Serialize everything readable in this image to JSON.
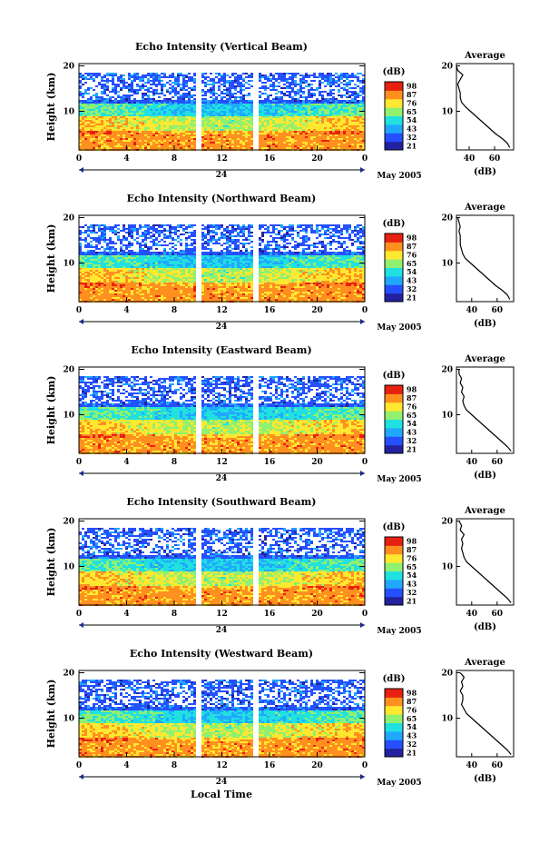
{
  "figure": {
    "x_axis_title": "Local Time",
    "date_label": "May 2005",
    "day_label": "24",
    "colorbar_unit": "(dB)",
    "profile_title": "Average",
    "profile_xlabel": "(dB)"
  },
  "chart_data": [
    {
      "type": "heatmap",
      "title": "Echo Intensity (Vertical Beam)",
      "ylabel": "Height (km)",
      "xlabel": "Local Time",
      "x_ticks": [
        "0",
        "4",
        "8",
        "12",
        "16",
        "20",
        "0"
      ],
      "y_ticks": [
        "10",
        "20"
      ],
      "xlim": [
        0,
        24
      ],
      "ylim": [
        1.5,
        20.5
      ],
      "data_gaps_hours": [
        [
          9.8,
          10.2
        ],
        [
          14.6,
          15.0
        ]
      ],
      "colorbar": {
        "unit": "(dB)",
        "ticks": [
          "21",
          "32",
          "43",
          "54",
          "65",
          "76",
          "87",
          "98"
        ],
        "colors": [
          "#2222a0",
          "#2550ff",
          "#20a8ff",
          "#20e0e0",
          "#90f070",
          "#ffe830",
          "#ff9020",
          "#e82010"
        ]
      },
      "average_profile": {
        "title": "Average",
        "xlabel": "(dB)",
        "x_ticks": [
          "40",
          "60"
        ],
        "y_ticks": [
          "10",
          "20"
        ],
        "xlim": [
          30,
          75
        ],
        "ylim": [
          1.5,
          20.5
        ],
        "points": [
          [
            72,
            2
          ],
          [
            70,
            3
          ],
          [
            66,
            4
          ],
          [
            61,
            5
          ],
          [
            57,
            6
          ],
          [
            53,
            7
          ],
          [
            49,
            8
          ],
          [
            45,
            9
          ],
          [
            41,
            10
          ],
          [
            37,
            11
          ],
          [
            34,
            12
          ],
          [
            33,
            13
          ],
          [
            33,
            14
          ],
          [
            32,
            15
          ],
          [
            31,
            16
          ],
          [
            33,
            17
          ],
          [
            35,
            18
          ],
          [
            31,
            19
          ],
          [
            30,
            20
          ]
        ]
      }
    },
    {
      "type": "heatmap",
      "title": "Echo Intensity (Northward Beam)",
      "ylabel": "Height (km)",
      "xlabel": "Local Time",
      "x_ticks": [
        "0",
        "4",
        "8",
        "12",
        "16",
        "20",
        "0"
      ],
      "y_ticks": [
        "10",
        "20"
      ],
      "xlim": [
        0,
        24
      ],
      "ylim": [
        1.5,
        20.5
      ],
      "data_gaps_hours": [
        [
          9.8,
          10.2
        ],
        [
          14.6,
          15.0
        ]
      ],
      "colorbar": {
        "unit": "(dB)",
        "ticks": [
          "21",
          "32",
          "43",
          "54",
          "65",
          "76",
          "87",
          "98"
        ],
        "colors": [
          "#2222a0",
          "#2550ff",
          "#20a8ff",
          "#20e0e0",
          "#90f070",
          "#ffe830",
          "#ff9020",
          "#e82010"
        ]
      },
      "average_profile": {
        "title": "Average",
        "xlabel": "(dB)",
        "x_ticks": [
          "40",
          "60"
        ],
        "y_ticks": [
          "10",
          "20"
        ],
        "xlim": [
          28,
          73
        ],
        "ylim": [
          1.5,
          20.5
        ],
        "points": [
          [
            70,
            2
          ],
          [
            68,
            3
          ],
          [
            64,
            4
          ],
          [
            59,
            5
          ],
          [
            55,
            6
          ],
          [
            51,
            7
          ],
          [
            47,
            8
          ],
          [
            43,
            9
          ],
          [
            39,
            10
          ],
          [
            35,
            11
          ],
          [
            33,
            12
          ],
          [
            32,
            13
          ],
          [
            31,
            14
          ],
          [
            31,
            15
          ],
          [
            31,
            16
          ],
          [
            30,
            17
          ],
          [
            31,
            18
          ],
          [
            30,
            19
          ],
          [
            29,
            20
          ]
        ]
      }
    },
    {
      "type": "heatmap",
      "title": "Echo Intensity (Eastward Beam)",
      "ylabel": "Height (km)",
      "xlabel": "Local Time",
      "x_ticks": [
        "0",
        "4",
        "8",
        "12",
        "16",
        "20",
        "0"
      ],
      "y_ticks": [
        "10",
        "20"
      ],
      "xlim": [
        0,
        24
      ],
      "ylim": [
        1.5,
        20.5
      ],
      "data_gaps_hours": [
        [
          9.8,
          10.2
        ],
        [
          14.6,
          15.0
        ]
      ],
      "colorbar": {
        "unit": "(dB)",
        "ticks": [
          "21",
          "32",
          "43",
          "54",
          "65",
          "76",
          "87",
          "98"
        ],
        "colors": [
          "#2222a0",
          "#2550ff",
          "#20a8ff",
          "#20e0e0",
          "#90f070",
          "#ffe830",
          "#ff9020",
          "#e82010"
        ]
      },
      "average_profile": {
        "title": "Average",
        "xlabel": "(dB)",
        "x_ticks": [
          "40",
          "60"
        ],
        "y_ticks": [
          "10",
          "20"
        ],
        "xlim": [
          28,
          73
        ],
        "ylim": [
          1.5,
          20.5
        ],
        "points": [
          [
            71,
            2
          ],
          [
            68,
            3
          ],
          [
            64,
            4
          ],
          [
            60,
            5
          ],
          [
            56,
            6
          ],
          [
            52,
            7
          ],
          [
            48,
            8
          ],
          [
            44,
            9
          ],
          [
            40,
            10
          ],
          [
            36,
            11
          ],
          [
            34,
            12
          ],
          [
            33,
            13
          ],
          [
            34,
            14
          ],
          [
            32,
            15
          ],
          [
            33,
            16
          ],
          [
            31,
            17
          ],
          [
            32,
            18
          ],
          [
            30,
            19
          ],
          [
            30,
            20
          ]
        ]
      }
    },
    {
      "type": "heatmap",
      "title": "Echo Intensity (Southward Beam)",
      "ylabel": "Height (km)",
      "xlabel": "Local Time",
      "x_ticks": [
        "0",
        "4",
        "8",
        "12",
        "16",
        "20",
        "0"
      ],
      "y_ticks": [
        "10",
        "20"
      ],
      "xlim": [
        0,
        24
      ],
      "ylim": [
        1.5,
        20.5
      ],
      "data_gaps_hours": [
        [
          9.8,
          10.2
        ],
        [
          14.6,
          15.0
        ]
      ],
      "colorbar": {
        "unit": "(dB)",
        "ticks": [
          "21",
          "32",
          "43",
          "54",
          "65",
          "76",
          "87",
          "98"
        ],
        "colors": [
          "#2222a0",
          "#2550ff",
          "#20a8ff",
          "#20e0e0",
          "#90f070",
          "#ffe830",
          "#ff9020",
          "#e82010"
        ]
      },
      "average_profile": {
        "title": "Average",
        "xlabel": "(dB)",
        "x_ticks": [
          "40",
          "60"
        ],
        "y_ticks": [
          "10",
          "20"
        ],
        "xlim": [
          28,
          73
        ],
        "ylim": [
          1.5,
          20.5
        ],
        "points": [
          [
            71,
            2
          ],
          [
            68,
            3
          ],
          [
            64,
            4
          ],
          [
            60,
            5
          ],
          [
            56,
            6
          ],
          [
            52,
            7
          ],
          [
            48,
            8
          ],
          [
            44,
            9
          ],
          [
            40,
            10
          ],
          [
            36,
            11
          ],
          [
            34,
            12
          ],
          [
            33,
            13
          ],
          [
            32,
            14
          ],
          [
            33,
            15
          ],
          [
            32,
            16
          ],
          [
            34,
            17
          ],
          [
            31,
            18
          ],
          [
            32,
            19
          ],
          [
            30,
            20
          ]
        ]
      }
    },
    {
      "type": "heatmap",
      "title": "Echo Intensity (Westward Beam)",
      "ylabel": "Height (km)",
      "xlabel": "Local Time",
      "x_ticks": [
        "0",
        "4",
        "8",
        "12",
        "16",
        "20",
        "0"
      ],
      "y_ticks": [
        "10",
        "20"
      ],
      "xlim": [
        0,
        24
      ],
      "ylim": [
        1.5,
        20.5
      ],
      "data_gaps_hours": [
        [
          9.8,
          10.2
        ],
        [
          14.6,
          15.0
        ]
      ],
      "colorbar": {
        "unit": "(dB)",
        "ticks": [
          "21",
          "32",
          "43",
          "54",
          "65",
          "76",
          "87",
          "98"
        ],
        "colors": [
          "#2222a0",
          "#2550ff",
          "#20a8ff",
          "#20e0e0",
          "#90f070",
          "#ffe830",
          "#ff9020",
          "#e82010"
        ]
      },
      "average_profile": {
        "title": "Average",
        "xlabel": "(dB)",
        "x_ticks": [
          "40",
          "60"
        ],
        "y_ticks": [
          "10",
          "20"
        ],
        "xlim": [
          28,
          73
        ],
        "ylim": [
          1.5,
          20.5
        ],
        "points": [
          [
            71,
            2
          ],
          [
            68,
            3
          ],
          [
            64,
            4
          ],
          [
            60,
            5
          ],
          [
            56,
            6
          ],
          [
            52,
            7
          ],
          [
            48,
            8
          ],
          [
            44,
            9
          ],
          [
            40,
            10
          ],
          [
            36,
            11
          ],
          [
            34,
            12
          ],
          [
            32,
            13
          ],
          [
            33,
            14
          ],
          [
            33,
            15
          ],
          [
            31,
            16
          ],
          [
            33,
            17
          ],
          [
            32,
            18
          ],
          [
            34,
            19
          ],
          [
            31,
            20
          ]
        ]
      }
    }
  ]
}
